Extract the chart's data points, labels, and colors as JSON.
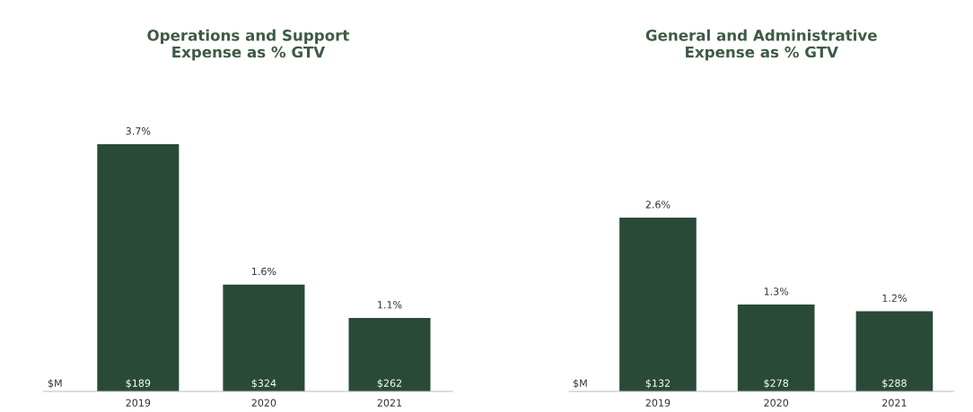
{
  "chart_data": [
    {
      "type": "bar",
      "title": "Operations and Support\nExpense as % GTV",
      "categories": [
        "2019",
        "2020",
        "2021"
      ],
      "values": [
        3.7,
        1.6,
        1.1
      ],
      "value_labels": [
        "3.7%",
        "1.6%",
        "1.1%"
      ],
      "color": "#2a4a38",
      "annotations": [
        "$M",
        "$189",
        "$324",
        "$262"
      ]
    },
    {
      "type": "bar",
      "title": "General and Administrative\nExpense as % GTV",
      "categories": [
        "2019",
        "2020",
        "2021"
      ],
      "values": [
        2.6,
        1.3,
        1.2
      ],
      "value_labels": [
        "2.6%",
        "1.3%",
        "1.2%"
      ],
      "color": "#2a4a38",
      "annotations": [
        "$M",
        "$132",
        "$278",
        "$288"
      ]
    }
  ]
}
